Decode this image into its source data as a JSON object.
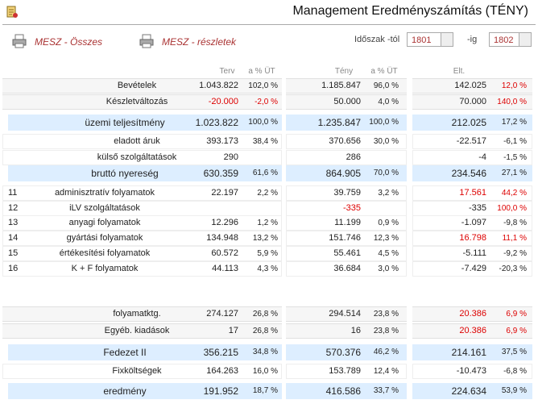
{
  "header": {
    "title": "Management Eredményszámítás (TÉNY)",
    "links": [
      "MESZ - Összes",
      "MESZ - részletek"
    ],
    "period": {
      "from_label": "Időszak -tól",
      "from": "1801",
      "to_label": "-ig",
      "to": "1802"
    }
  },
  "table": {
    "columns": [
      "Terv",
      "a % ÜT",
      "Tény",
      "a % ÜT",
      "Elt."
    ],
    "rows": [
      {
        "kind": "box",
        "label": "Bevételek",
        "cells": [
          "1.043.822",
          "102,0 %",
          "1.185.847",
          "96,0 %",
          "142.025",
          "12,0 %"
        ],
        "red": [
          5
        ]
      },
      {
        "kind": "box",
        "label": "Készletváltozás",
        "cells": [
          "-20.000",
          "-2,0 %",
          "50.000",
          "4,0 %",
          "70.000",
          "140,0 %"
        ],
        "red": [
          0,
          1,
          5
        ]
      },
      {
        "kind": "total",
        "label": "üzemi teljesítmény",
        "cells": [
          "1.023.822",
          "100,0 %",
          "1.235.847",
          "100,0 %",
          "212.025",
          "17,2 %"
        ],
        "red": []
      },
      {
        "kind": "plain",
        "label": "eladott áruk",
        "cells": [
          "393.173",
          "38,4 %",
          "370.656",
          "30,0 %",
          "-22.517",
          "-6,1 %"
        ],
        "red": []
      },
      {
        "kind": "plain",
        "label": "külső szolgáltatások",
        "cells": [
          "290",
          null,
          "286",
          null,
          "-4",
          "-1,5 %"
        ],
        "red": []
      },
      {
        "kind": "total",
        "label": "bruttó nyereség",
        "cells": [
          "630.359",
          "61,6 %",
          "864.905",
          "70,0 %",
          "234.546",
          "27,1 %"
        ],
        "red": []
      },
      {
        "kind": "num",
        "num": "11",
        "label": "adminisztratív folyamatok",
        "cells": [
          "22.197",
          "2,2 %",
          "39.759",
          "3,2 %",
          "17.561",
          "44,2 %"
        ],
        "red": [
          4,
          5
        ]
      },
      {
        "kind": "num",
        "num": "12",
        "label": "iLV szolgáltatások",
        "cells": [
          null,
          null,
          "-335",
          null,
          "-335",
          "100,0 %"
        ],
        "red": [
          2,
          5
        ]
      },
      {
        "kind": "num",
        "num": "13",
        "label": "anyagi folyamatok",
        "cells": [
          "12.296",
          "1,2 %",
          "11.199",
          "0,9 %",
          "-1.097",
          "-9,8 %"
        ],
        "red": []
      },
      {
        "kind": "num",
        "num": "14",
        "label": "gyártási folyamatok",
        "cells": [
          "134.948",
          "13,2 %",
          "151.746",
          "12,3 %",
          "16.798",
          "11,1 %"
        ],
        "red": [
          4,
          5
        ]
      },
      {
        "kind": "num",
        "num": "15",
        "label": "értékesítési folyamatok",
        "cells": [
          "60.572",
          "5,9 %",
          "55.461",
          "4,5 %",
          "-5.111",
          "-9,2 %"
        ],
        "red": []
      },
      {
        "kind": "num",
        "num": "16",
        "label": "K + F folyamatok",
        "cells": [
          "44.113",
          "4,3 %",
          "36.684",
          "3,0 %",
          "-7.429",
          "-20,3 %"
        ],
        "red": []
      },
      {
        "kind": "box",
        "label": "folyamatktg.",
        "cells": [
          "274.127",
          "26,8 %",
          "294.514",
          "23,8 %",
          "20.386",
          "6,9 %"
        ],
        "red": [
          4,
          5
        ]
      },
      {
        "kind": "box",
        "label": "Egyéb. kiadások",
        "cells": [
          "17",
          "26,8 %",
          "16",
          "23,8 %",
          "20.386",
          "6,9 %"
        ],
        "red": [
          4,
          5
        ]
      },
      {
        "kind": "total",
        "label": "Fedezet II",
        "cells": [
          "356.215",
          "34,8 %",
          "570.376",
          "46,2 %",
          "214.161",
          "37,5 %"
        ],
        "red": []
      },
      {
        "kind": "plain",
        "label": "Fixköltségek",
        "cells": [
          "164.263",
          "16,0 %",
          "153.789",
          "12,4 %",
          "-10.473",
          "-6,8 %"
        ],
        "red": []
      },
      {
        "kind": "total",
        "label": "eredmény",
        "cells": [
          "191.952",
          "18,7 %",
          "416.586",
          "33,7 %",
          "224.634",
          "53,9 %"
        ],
        "red": []
      }
    ]
  }
}
